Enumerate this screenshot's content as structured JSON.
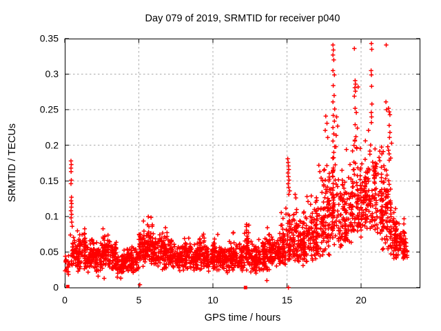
{
  "page": {
    "background": "#ffffff"
  },
  "chart_data": {
    "type": "scatter",
    "title": "Day 079 of 2019, SRMTID for receiver p040",
    "xlabel": "GPS time / hours",
    "ylabel": "SRMTID / TECUs",
    "xlim": [
      0,
      24
    ],
    "ylim": [
      0,
      0.35
    ],
    "xticks": [
      {
        "v": 0,
        "label": "0"
      },
      {
        "v": 5,
        "label": "5"
      },
      {
        "v": 10,
        "label": "10"
      },
      {
        "v": 15,
        "label": "15"
      },
      {
        "v": 20,
        "label": "20"
      }
    ],
    "yticks": [
      {
        "v": 0.0,
        "label": "0"
      },
      {
        "v": 0.05,
        "label": "0.05"
      },
      {
        "v": 0.1,
        "label": "0.1"
      },
      {
        "v": 0.15,
        "label": "0.15"
      },
      {
        "v": 0.2,
        "label": "0.2"
      },
      {
        "v": 0.25,
        "label": "0.25"
      },
      {
        "v": 0.3,
        "label": "0.3"
      },
      {
        "v": 0.35,
        "label": "0.35"
      }
    ],
    "grid": {
      "show": true,
      "color": "#a8a8a8",
      "dash": "2.5,3.5"
    },
    "frame_color": "#000000",
    "marker": {
      "shape": "plus",
      "color": "#ff0000",
      "arm": 3.2,
      "stroke_width": 1.5
    },
    "legend": null,
    "seed": 79,
    "bin_width": 0.5,
    "band_bins": [
      [
        0.0,
        22,
        0.015,
        0.035,
        0.06
      ],
      [
        0.5,
        55,
        0.02,
        0.045,
        0.085
      ],
      [
        1.0,
        55,
        0.02,
        0.05,
        0.095
      ],
      [
        1.5,
        55,
        0.02,
        0.045,
        0.08
      ],
      [
        2.0,
        50,
        0.015,
        0.04,
        0.075
      ],
      [
        2.5,
        60,
        0.025,
        0.055,
        0.105
      ],
      [
        3.0,
        55,
        0.02,
        0.045,
        0.08
      ],
      [
        3.5,
        50,
        0.013,
        0.033,
        0.055
      ],
      [
        4.0,
        50,
        0.018,
        0.038,
        0.06
      ],
      [
        4.5,
        50,
        0.015,
        0.04,
        0.065
      ],
      [
        5.0,
        60,
        0.025,
        0.055,
        0.1
      ],
      [
        5.5,
        60,
        0.028,
        0.058,
        0.105
      ],
      [
        6.0,
        55,
        0.022,
        0.048,
        0.09
      ],
      [
        6.5,
        55,
        0.022,
        0.05,
        0.095
      ],
      [
        7.0,
        55,
        0.022,
        0.045,
        0.08
      ],
      [
        7.5,
        55,
        0.02,
        0.04,
        0.07
      ],
      [
        8.0,
        55,
        0.022,
        0.045,
        0.085
      ],
      [
        8.5,
        55,
        0.02,
        0.04,
        0.075
      ],
      [
        9.0,
        58,
        0.022,
        0.05,
        0.095
      ],
      [
        9.5,
        55,
        0.018,
        0.04,
        0.07
      ],
      [
        10.0,
        55,
        0.02,
        0.045,
        0.09
      ],
      [
        10.5,
        55,
        0.018,
        0.04,
        0.07
      ],
      [
        11.0,
        55,
        0.022,
        0.045,
        0.09
      ],
      [
        11.5,
        55,
        0.018,
        0.04,
        0.075
      ],
      [
        12.0,
        60,
        0.022,
        0.05,
        0.112
      ],
      [
        12.5,
        55,
        0.018,
        0.04,
        0.08
      ],
      [
        13.0,
        55,
        0.02,
        0.045,
        0.09
      ],
      [
        13.5,
        55,
        0.022,
        0.05,
        0.102
      ],
      [
        14.0,
        55,
        0.025,
        0.05,
        0.08
      ],
      [
        14.5,
        60,
        0.028,
        0.06,
        0.135
      ],
      [
        15.0,
        60,
        0.035,
        0.07,
        0.13
      ],
      [
        15.5,
        60,
        0.03,
        0.06,
        0.12
      ],
      [
        16.0,
        60,
        0.03,
        0.065,
        0.135
      ],
      [
        16.5,
        60,
        0.032,
        0.07,
        0.145
      ],
      [
        17.0,
        60,
        0.035,
        0.08,
        0.17
      ],
      [
        17.5,
        62,
        0.045,
        0.1,
        0.245
      ],
      [
        18.0,
        65,
        0.05,
        0.115,
        0.27
      ],
      [
        18.5,
        62,
        0.05,
        0.1,
        0.21
      ],
      [
        19.0,
        62,
        0.055,
        0.11,
        0.235
      ],
      [
        19.5,
        65,
        0.065,
        0.125,
        0.27
      ],
      [
        20.0,
        65,
        0.075,
        0.12,
        0.24
      ],
      [
        20.5,
        65,
        0.075,
        0.13,
        0.26
      ],
      [
        21.0,
        62,
        0.05,
        0.11,
        0.245
      ],
      [
        21.5,
        62,
        0.04,
        0.1,
        0.23
      ],
      [
        22.0,
        58,
        0.038,
        0.065,
        0.12
      ],
      [
        22.5,
        52,
        0.035,
        0.06,
        0.105
      ],
      [
        23.0,
        8,
        0.04,
        0.055,
        0.075,
        0.12
      ]
    ],
    "explicit_points": [
      [
        0.42,
        0.178
      ],
      [
        0.44,
        0.173
      ],
      [
        0.42,
        0.168
      ],
      [
        0.43,
        0.163
      ],
      [
        0.44,
        0.151
      ],
      [
        0.42,
        0.146
      ],
      [
        0.45,
        0.127
      ],
      [
        0.43,
        0.122
      ],
      [
        0.46,
        0.118
      ],
      [
        0.44,
        0.113
      ],
      [
        0.42,
        0.108
      ],
      [
        0.46,
        0.103
      ],
      [
        0.43,
        0.098
      ],
      [
        0.47,
        0.092
      ],
      [
        0.5,
        0.086
      ],
      [
        0.38,
        0.074
      ],
      [
        2.25,
        0.016
      ],
      [
        2.66,
        0.013
      ],
      [
        3.78,
        0.013
      ],
      [
        5.07,
        0.004
      ],
      [
        13.64,
        0.01
      ],
      [
        15.05,
        0.181
      ],
      [
        15.08,
        0.176
      ],
      [
        15.1,
        0.171
      ],
      [
        15.12,
        0.166
      ],
      [
        15.07,
        0.161
      ],
      [
        15.1,
        0.156
      ],
      [
        15.14,
        0.151
      ],
      [
        15.08,
        0.146
      ],
      [
        15.11,
        0.141
      ],
      [
        15.18,
        0.136
      ],
      [
        15.12,
        0.131
      ],
      [
        15.55,
        0.131
      ],
      [
        15.6,
        0.126
      ],
      [
        16.35,
        0.128
      ],
      [
        16.42,
        0.121
      ],
      [
        17.15,
        0.172
      ],
      [
        17.22,
        0.163
      ],
      [
        17.3,
        0.154
      ],
      [
        17.62,
        0.241
      ],
      [
        17.7,
        0.231
      ],
      [
        17.58,
        0.221
      ],
      [
        17.75,
        0.211
      ],
      [
        18.1,
        0.341
      ],
      [
        18.13,
        0.334
      ],
      [
        18.1,
        0.327
      ],
      [
        18.16,
        0.32
      ],
      [
        18.1,
        0.305
      ],
      [
        18.2,
        0.299
      ],
      [
        18.12,
        0.284
      ],
      [
        18.18,
        0.27
      ],
      [
        18.1,
        0.261
      ],
      [
        18.22,
        0.251
      ],
      [
        18.12,
        0.242
      ],
      [
        18.2,
        0.234
      ],
      [
        18.1,
        0.225
      ],
      [
        18.16,
        0.216
      ],
      [
        18.1,
        0.206
      ],
      [
        18.22,
        0.198
      ],
      [
        18.16,
        0.19
      ],
      [
        18.35,
        0.24
      ],
      [
        18.42,
        0.227
      ],
      [
        19.55,
        0.336
      ],
      [
        19.6,
        0.291
      ],
      [
        19.63,
        0.286
      ],
      [
        19.58,
        0.281
      ],
      [
        19.62,
        0.276
      ],
      [
        19.55,
        0.269
      ],
      [
        19.6,
        0.252
      ],
      [
        19.68,
        0.246
      ],
      [
        19.6,
        0.229
      ],
      [
        19.65,
        0.212
      ],
      [
        19.58,
        0.206
      ],
      [
        19.52,
        0.2
      ],
      [
        19.7,
        0.197
      ],
      [
        19.8,
        0.282
      ],
      [
        20.7,
        0.343
      ],
      [
        20.72,
        0.335
      ],
      [
        20.68,
        0.305
      ],
      [
        20.7,
        0.299
      ],
      [
        20.71,
        0.283
      ],
      [
        20.73,
        0.258
      ],
      [
        20.69,
        0.246
      ],
      [
        20.71,
        0.24
      ],
      [
        20.7,
        0.232
      ],
      [
        20.5,
        0.221
      ],
      [
        21.7,
        0.341
      ],
      [
        21.68,
        0.261
      ],
      [
        21.72,
        0.25
      ],
      [
        21.85,
        0.252
      ],
      [
        21.9,
        0.247
      ],
      [
        21.95,
        0.243
      ],
      [
        21.9,
        0.228
      ],
      [
        21.95,
        0.218
      ],
      [
        21.92,
        0.211
      ],
      [
        22.06,
        0.203
      ],
      [
        21.8,
        0.198
      ],
      [
        21.85,
        0.193
      ],
      [
        21.9,
        0.188
      ],
      [
        22.0,
        0.182
      ],
      [
        21.6,
        0.166
      ],
      [
        21.75,
        0.158
      ],
      [
        21.65,
        0.153
      ],
      [
        21.55,
        0.148
      ],
      [
        21.9,
        0.145
      ],
      [
        15.1,
        0.0
      ]
    ],
    "axis_squares": [
      [
        0.2,
        0.0015
      ],
      [
        12.2,
        0.0
      ]
    ]
  }
}
